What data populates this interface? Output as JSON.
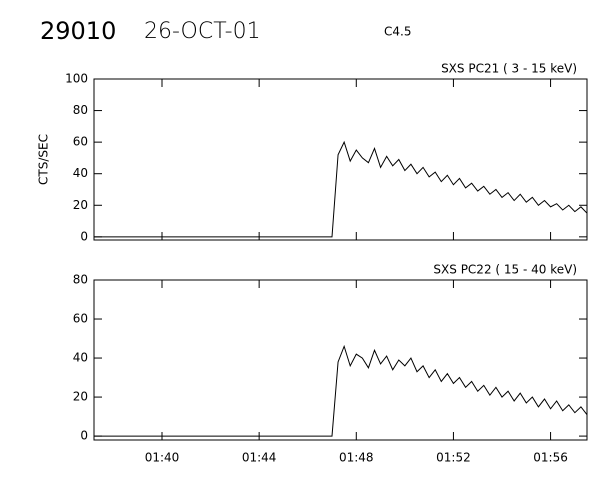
{
  "header": {
    "id": "29010",
    "date": "26-OCT-01",
    "class": "C4.5"
  },
  "chart_data": [
    {
      "type": "line",
      "title": "SXS PC21  (  3 - 15 keV)",
      "y_label": "CTS/SEC",
      "x": [
        97.2,
        107.0,
        107.25,
        107.5,
        107.75,
        108.0,
        108.25,
        108.5,
        108.75,
        109.0,
        109.25,
        109.5,
        109.75,
        110.0,
        110.25,
        110.5,
        110.75,
        111.0,
        111.25,
        111.5,
        111.75,
        112.0,
        112.25,
        112.5,
        112.75,
        113.0,
        113.25,
        113.5,
        113.75,
        114.0,
        114.25,
        114.5,
        114.75,
        115.0,
        115.25,
        115.5,
        115.75,
        116.0,
        116.25,
        116.5,
        116.75,
        117.0,
        117.25,
        117.5
      ],
      "series": [
        {
          "color": "#000000",
          "values": [
            0,
            0,
            52,
            60,
            48,
            55,
            50,
            47,
            56,
            44,
            51,
            45,
            49,
            42,
            46,
            40,
            44,
            38,
            41,
            35,
            39,
            33,
            37,
            31,
            34,
            29,
            32,
            27,
            30,
            25,
            28,
            23,
            27,
            22,
            25,
            20,
            23,
            19,
            21,
            17,
            20,
            16,
            19,
            15
          ]
        }
      ],
      "xlim": [
        97.2,
        117.5
      ],
      "ylim": [
        -2,
        100
      ],
      "yticks": [
        0,
        20,
        40,
        60,
        80,
        100
      ]
    },
    {
      "type": "line",
      "title": "SXS PC22  ( 15 - 40 keV)",
      "x": [
        97.2,
        107.0,
        107.25,
        107.5,
        107.75,
        108.0,
        108.25,
        108.5,
        108.75,
        109.0,
        109.25,
        109.5,
        109.75,
        110.0,
        110.25,
        110.5,
        110.75,
        111.0,
        111.25,
        111.5,
        111.75,
        112.0,
        112.25,
        112.5,
        112.75,
        113.0,
        113.25,
        113.5,
        113.75,
        114.0,
        114.25,
        114.5,
        114.75,
        115.0,
        115.25,
        115.5,
        115.75,
        116.0,
        116.25,
        116.5,
        116.75,
        117.0,
        117.25,
        117.5
      ],
      "series": [
        {
          "color": "#000000",
          "values": [
            0,
            0,
            38,
            46,
            36,
            42,
            40,
            35,
            44,
            37,
            41,
            34,
            39,
            36,
            40,
            33,
            36,
            30,
            34,
            28,
            32,
            27,
            30,
            25,
            28,
            23,
            26,
            21,
            25,
            20,
            23,
            18,
            22,
            17,
            20,
            15,
            19,
            14,
            18,
            13,
            16,
            12,
            15,
            11
          ]
        }
      ],
      "xlim": [
        97.2,
        117.5
      ],
      "ylim": [
        -2,
        80
      ],
      "yticks": [
        0,
        20,
        40,
        60,
        80
      ],
      "xticks": [
        {
          "value": 100,
          "label": "01:40"
        },
        {
          "value": 104,
          "label": "01:44"
        },
        {
          "value": 108,
          "label": "01:48"
        },
        {
          "value": 112,
          "label": "01:52"
        },
        {
          "value": 116,
          "label": "01:56"
        }
      ]
    }
  ]
}
